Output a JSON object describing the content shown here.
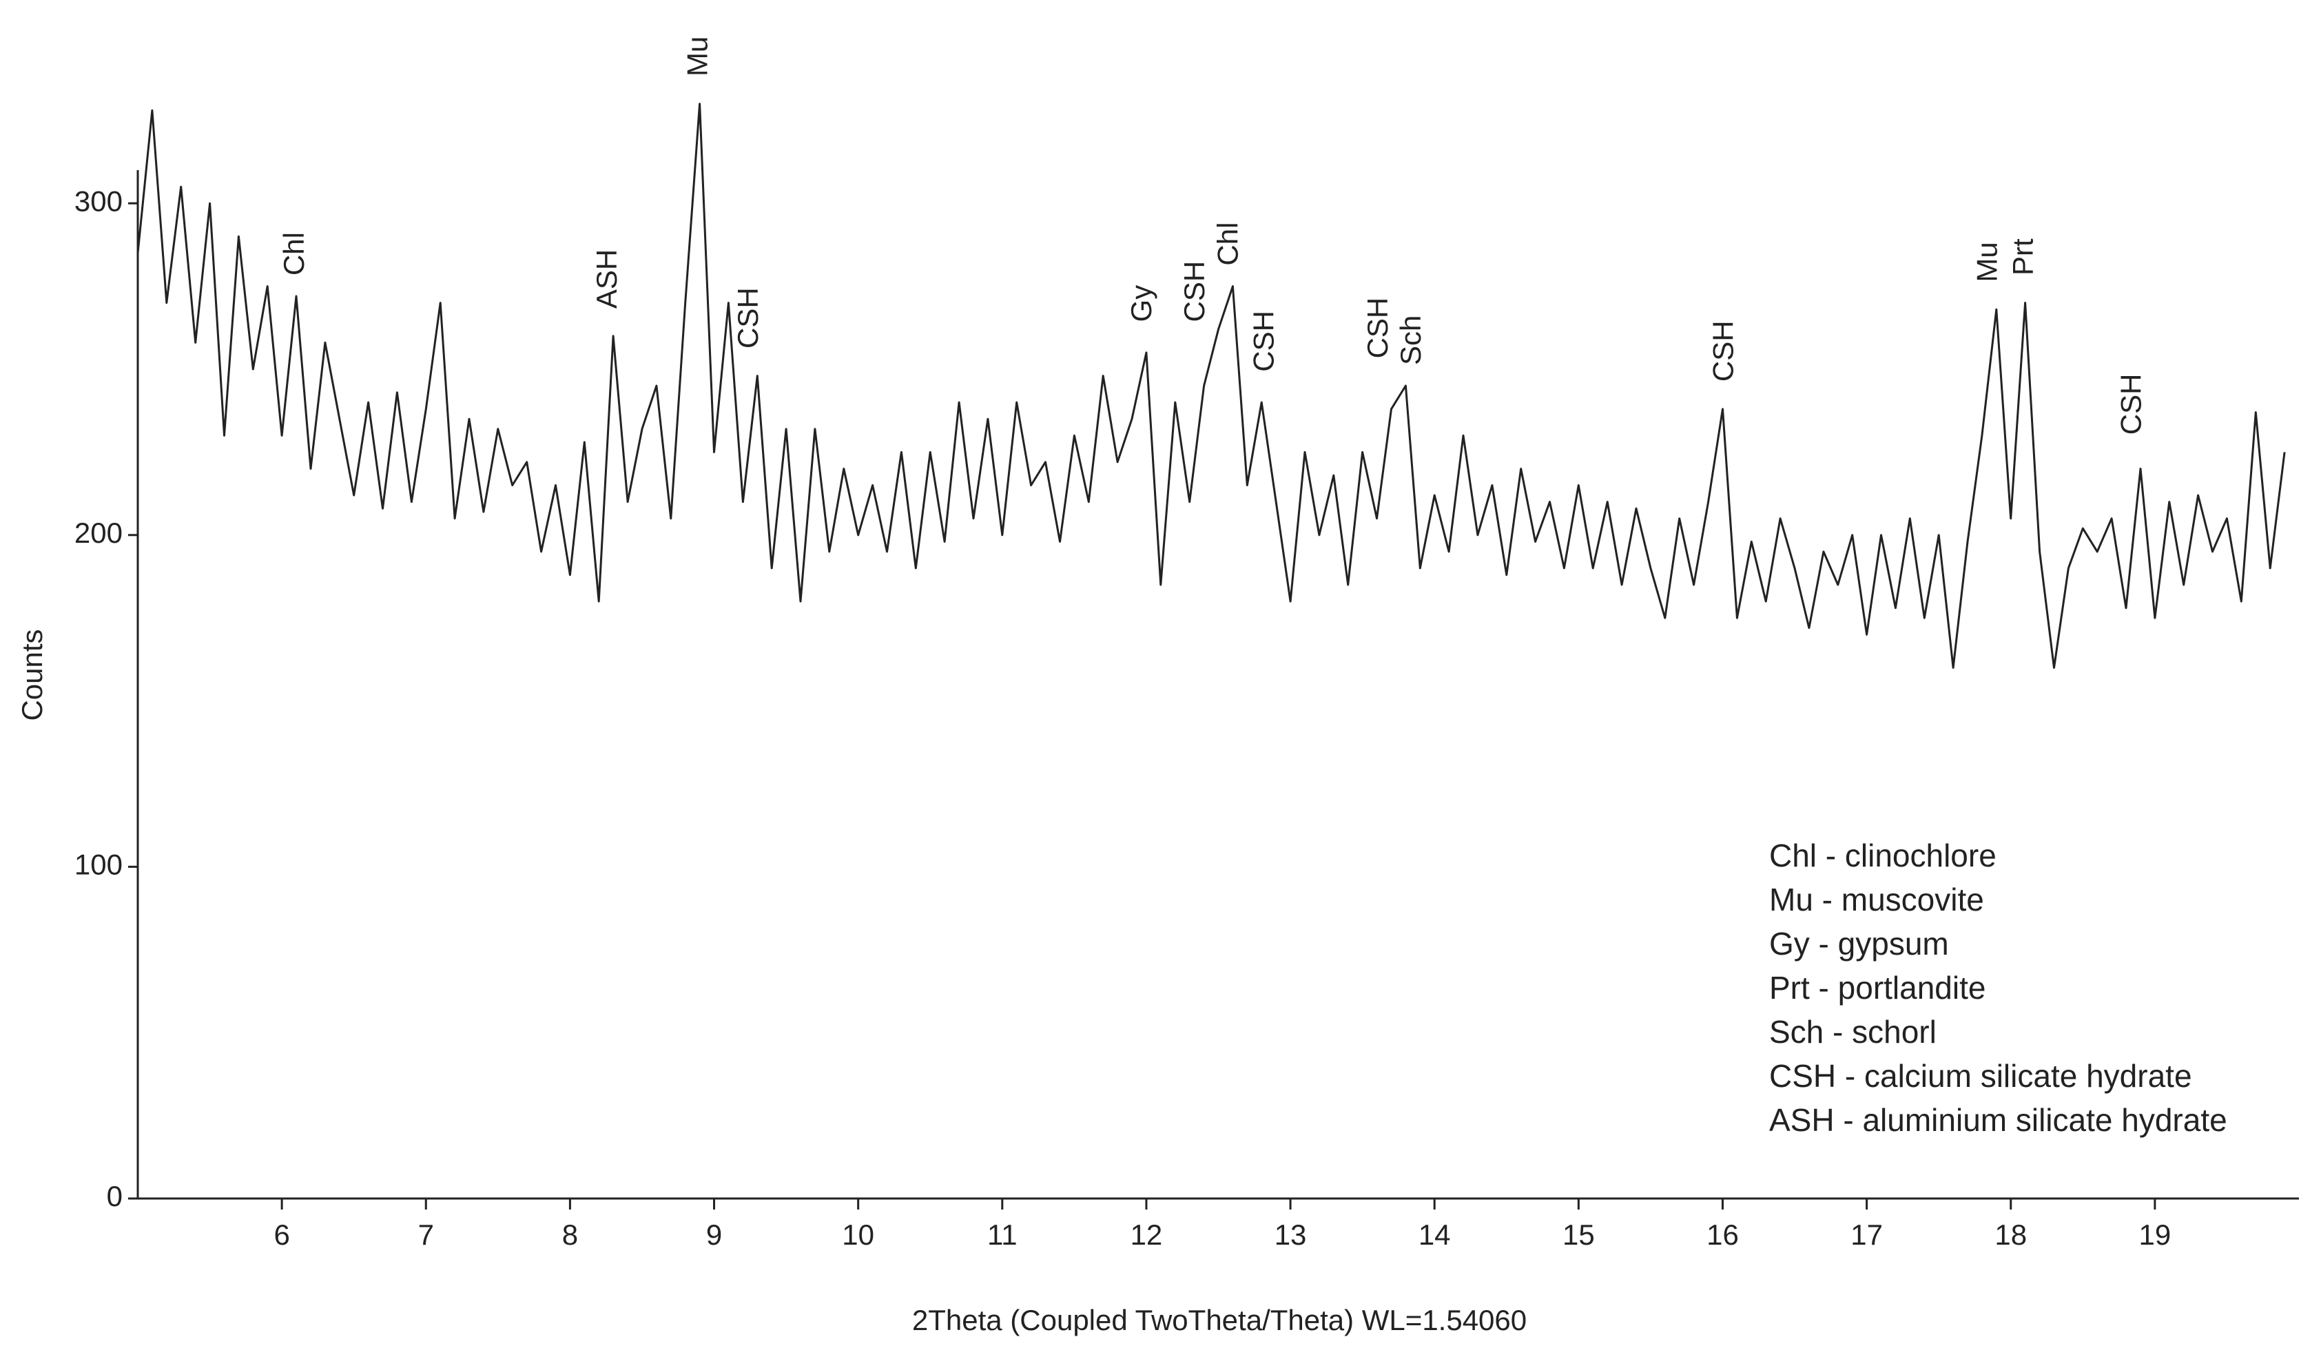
{
  "chart_data": {
    "type": "line",
    "x_label": "2Theta (Coupled TwoTheta/Theta) WL=1.54060",
    "y_label": "Counts",
    "xlim": [
      5,
      20
    ],
    "ylim": [
      0,
      310
    ],
    "xticks": [
      6,
      7,
      8,
      9,
      10,
      11,
      12,
      13,
      14,
      15,
      16,
      17,
      18,
      19
    ],
    "yticks": [
      0,
      100,
      200,
      300
    ],
    "grid": false,
    "legend_position": "lower right",
    "series": [
      {
        "color": "#222222",
        "x": [
          5.0,
          5.1,
          5.2,
          5.3,
          5.4,
          5.5,
          5.6,
          5.7,
          5.8,
          5.9,
          6.0,
          6.1,
          6.2,
          6.3,
          6.4,
          6.5,
          6.6,
          6.7,
          6.8,
          6.9,
          7.0,
          7.1,
          7.2,
          7.3,
          7.4,
          7.5,
          7.6,
          7.7,
          7.8,
          7.9,
          8.0,
          8.1,
          8.2,
          8.3,
          8.4,
          8.5,
          8.6,
          8.7,
          8.8,
          8.9,
          9.0,
          9.1,
          9.2,
          9.3,
          9.4,
          9.5,
          9.6,
          9.7,
          9.8,
          9.9,
          10.0,
          10.1,
          10.2,
          10.3,
          10.4,
          10.5,
          10.6,
          10.7,
          10.8,
          10.9,
          11.0,
          11.1,
          11.2,
          11.3,
          11.4,
          11.5,
          11.6,
          11.7,
          11.8,
          11.9,
          12.0,
          12.1,
          12.2,
          12.3,
          12.4,
          12.5,
          12.6,
          12.7,
          12.8,
          12.9,
          13.0,
          13.1,
          13.2,
          13.3,
          13.4,
          13.5,
          13.6,
          13.7,
          13.8,
          13.9,
          14.0,
          14.1,
          14.2,
          14.3,
          14.4,
          14.5,
          14.6,
          14.7,
          14.8,
          14.9,
          15.0,
          15.1,
          15.2,
          15.3,
          15.4,
          15.5,
          15.6,
          15.7,
          15.8,
          15.9,
          16.0,
          16.1,
          16.2,
          16.3,
          16.4,
          16.5,
          16.6,
          16.7,
          16.8,
          16.9,
          17.0,
          17.1,
          17.2,
          17.3,
          17.4,
          17.5,
          17.6,
          17.7,
          17.8,
          17.9,
          18.0,
          18.1,
          18.2,
          18.3,
          18.4,
          18.5,
          18.6,
          18.7,
          18.8,
          18.9,
          19.0,
          19.1,
          19.2,
          19.3,
          19.4,
          19.5,
          19.6,
          19.7,
          19.8,
          19.9
        ],
        "values": [
          285,
          328,
          270,
          305,
          258,
          300,
          230,
          290,
          250,
          275,
          230,
          272,
          220,
          258,
          235,
          212,
          240,
          208,
          243,
          210,
          238,
          270,
          205,
          235,
          207,
          232,
          215,
          222,
          195,
          215,
          188,
          228,
          180,
          260,
          210,
          232,
          245,
          205,
          270,
          330,
          225,
          270,
          210,
          248,
          190,
          232,
          180,
          232,
          195,
          220,
          200,
          215,
          195,
          225,
          190,
          225,
          198,
          240,
          205,
          235,
          200,
          240,
          215,
          222,
          198,
          230,
          210,
          248,
          222,
          235,
          255,
          185,
          240,
          210,
          245,
          262,
          275,
          215,
          240,
          210,
          180,
          225,
          200,
          218,
          185,
          225,
          205,
          238,
          245,
          190,
          212,
          195,
          230,
          200,
          215,
          188,
          220,
          198,
          210,
          190,
          215,
          190,
          210,
          185,
          208,
          190,
          175,
          205,
          185,
          210,
          238,
          175,
          198,
          180,
          205,
          190,
          172,
          195,
          185,
          200,
          170,
          200,
          178,
          205,
          175,
          200,
          160,
          198,
          230,
          268,
          205,
          270,
          195,
          160,
          190,
          202,
          195,
          205,
          178,
          220,
          175,
          210,
          185,
          212,
          195,
          205,
          180,
          237,
          190,
          225
        ]
      }
    ],
    "annotations": [
      {
        "text": "Chl",
        "x": 6.1,
        "y": 272
      },
      {
        "text": "ASH",
        "x": 8.27,
        "y": 262
      },
      {
        "text": "Mu",
        "x": 8.9,
        "y": 332
      },
      {
        "text": "CSH",
        "x": 9.25,
        "y": 250
      },
      {
        "text": "Gy",
        "x": 11.98,
        "y": 258
      },
      {
        "text": "CSH",
        "x": 12.35,
        "y": 258
      },
      {
        "text": "Chl",
        "x": 12.58,
        "y": 275
      },
      {
        "text": "CSH",
        "x": 12.83,
        "y": 243
      },
      {
        "text": "CSH",
        "x": 13.62,
        "y": 247
      },
      {
        "text": "Sch",
        "x": 13.85,
        "y": 245
      },
      {
        "text": "CSH",
        "x": 16.02,
        "y": 240
      },
      {
        "text": "Mu",
        "x": 17.85,
        "y": 270
      },
      {
        "text": "Prt",
        "x": 18.1,
        "y": 272
      },
      {
        "text": "CSH",
        "x": 18.85,
        "y": 224
      }
    ],
    "legend_lines": [
      "Chl - clinochlore",
      "Mu - muscovite",
      "Gy - gypsum",
      "Prt - portlandite",
      "Sch - schorl",
      "CSH - calcium silicate hydrate",
      "ASH - aluminium silicate hydrate"
    ]
  }
}
